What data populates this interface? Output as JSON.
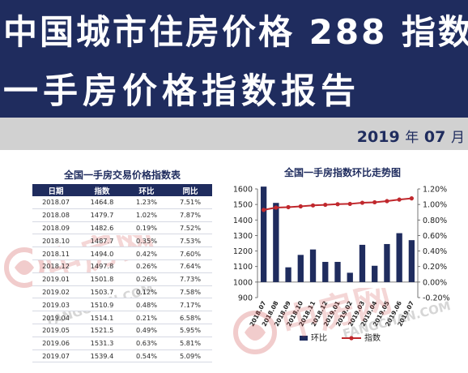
{
  "banner": {
    "line1": "中国城市住房价格 288 指数",
    "line2": "一手房价格指数报告",
    "year": "2019",
    "year_unit": "年",
    "month": "07",
    "month_unit": "月"
  },
  "table": {
    "title": "全国一手房交易价格指数表",
    "headers": [
      "日期",
      "指数",
      "环比",
      "同比"
    ],
    "rows": [
      [
        "2018.07",
        "1464.8",
        "1.23%",
        "7.51%"
      ],
      [
        "2018.08",
        "1479.7",
        "1.02%",
        "7.87%"
      ],
      [
        "2018.09",
        "1482.6",
        "0.19%",
        "7.52%"
      ],
      [
        "2018.10",
        "1487.7",
        "0.35%",
        "7.53%"
      ],
      [
        "2018.11",
        "1494.0",
        "0.42%",
        "7.60%"
      ],
      [
        "2018.12",
        "1497.8",
        "0.26%",
        "7.64%"
      ],
      [
        "2019.01",
        "1501.8",
        "0.26%",
        "7.73%"
      ],
      [
        "2019.02",
        "1503.7",
        "0.12%",
        "7.58%"
      ],
      [
        "2019.03",
        "1510.9",
        "0.48%",
        "7.17%"
      ],
      [
        "2019.04",
        "1514.1",
        "0.21%",
        "6.58%"
      ],
      [
        "2019.05",
        "1521.5",
        "0.49%",
        "5.95%"
      ],
      [
        "2019.06",
        "1531.3",
        "0.63%",
        "5.81%"
      ],
      [
        "2019.07",
        "1539.4",
        "0.54%",
        "5.09%"
      ]
    ]
  },
  "watermark": {
    "brand": "中房网",
    "domain": "FANGCHAN.COM"
  },
  "colors": {
    "navy": "#1f2c5e",
    "bar": "#1f2c5e",
    "line": "#c0282d",
    "gray_band": "#d1d1d1"
  },
  "chart_data": {
    "type": "bar",
    "title": "全国一手房指数环比走势图",
    "categories": [
      "2018.07",
      "2018.08",
      "2018.09",
      "2018.10",
      "2018.11",
      "2018.12",
      "2019.01",
      "2019.02",
      "2019.03",
      "2019.04",
      "2019.05",
      "2019.06",
      "2019.07"
    ],
    "series": [
      {
        "name": "环比",
        "type": "bar",
        "axis": "right",
        "values": [
          1.23,
          1.02,
          0.19,
          0.35,
          0.42,
          0.26,
          0.26,
          0.12,
          0.48,
          0.21,
          0.49,
          0.63,
          0.54
        ]
      },
      {
        "name": "指数",
        "type": "line",
        "axis": "left",
        "values": [
          1464.8,
          1479.7,
          1482.6,
          1487.7,
          1494.0,
          1497.8,
          1501.8,
          1503.7,
          1510.9,
          1514.1,
          1521.5,
          1531.3,
          1539.4
        ]
      }
    ],
    "left_axis": {
      "ylim": [
        900,
        1600
      ],
      "ticks": [
        900,
        1000,
        1100,
        1200,
        1300,
        1400,
        1500,
        1600
      ]
    },
    "right_axis": {
      "ylim": [
        -0.2,
        1.2
      ],
      "ticks": [
        "1.20%",
        "1.00%",
        "0.80%",
        "0.60%",
        "0.40%",
        "0.20%",
        "0.00%",
        "-0.20%"
      ]
    },
    "legend_position": "bottom",
    "grid": false
  }
}
